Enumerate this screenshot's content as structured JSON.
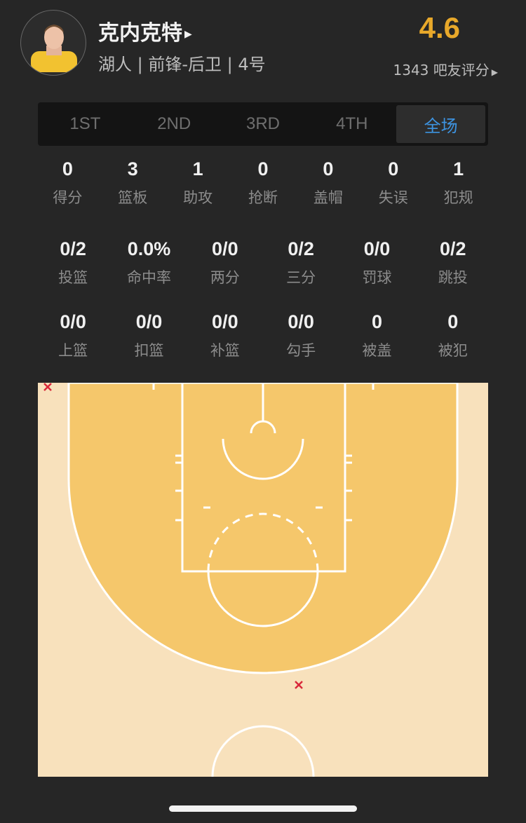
{
  "player": {
    "name": "克内克特",
    "info": "湖人 | 前锋-后卫 | 4号",
    "rating": "4.6",
    "votes": "1343 吧友评分"
  },
  "tabs": [
    {
      "label": "1ST"
    },
    {
      "label": "2ND"
    },
    {
      "label": "3RD"
    },
    {
      "label": "4TH"
    },
    {
      "label": "全场",
      "active": true
    }
  ],
  "stats_main": [
    {
      "v": "0",
      "l": "得分"
    },
    {
      "v": "3",
      "l": "篮板"
    },
    {
      "v": "1",
      "l": "助攻"
    },
    {
      "v": "0",
      "l": "抢断"
    },
    {
      "v": "0",
      "l": "盖帽"
    },
    {
      "v": "0",
      "l": "失误"
    },
    {
      "v": "1",
      "l": "犯规"
    }
  ],
  "stats_shooting": [
    {
      "v": "0/2",
      "l": "投篮"
    },
    {
      "v": "0.0%",
      "l": "命中率"
    },
    {
      "v": "0/0",
      "l": "两分"
    },
    {
      "v": "0/2",
      "l": "三分"
    },
    {
      "v": "0/0",
      "l": "罚球"
    },
    {
      "v": "0/2",
      "l": "跳投"
    }
  ],
  "stats_shot_types": [
    {
      "v": "0/0",
      "l": "上篮"
    },
    {
      "v": "0/0",
      "l": "扣篮"
    },
    {
      "v": "0/0",
      "l": "补篮"
    },
    {
      "v": "0/0",
      "l": "勾手"
    },
    {
      "v": "0",
      "l": "被盖"
    },
    {
      "v": "0",
      "l": "被犯"
    }
  ],
  "shot_chart": {
    "shots": [
      {
        "result": "miss",
        "zone": "left corner three"
      },
      {
        "result": "miss",
        "zone": "top of arc three"
      }
    ]
  },
  "colors": {
    "accent": "#3d93e0",
    "rating": "#e8a82a",
    "miss": "#d9283a",
    "paint": "#f5c76b",
    "court": "#f8e1bc"
  }
}
